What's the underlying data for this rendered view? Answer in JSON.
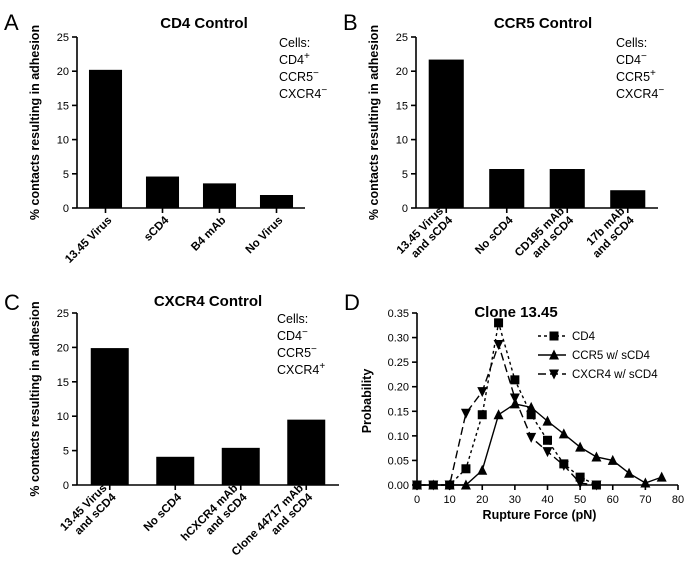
{
  "chart_data": [
    {
      "id": "A",
      "panel": "A",
      "type": "bar",
      "title": "CD4 Control",
      "ylabel": "% contacts resulting in adhesion",
      "ylim": [
        0,
        25
      ],
      "yticks": [
        "0",
        "5",
        "10",
        "15",
        "20",
        "25"
      ],
      "categories": [
        [
          "13.45 Virus"
        ],
        [
          "sCD4"
        ],
        [
          "B4 mAb"
        ],
        [
          "No Virus"
        ]
      ],
      "values": [
        20.2,
        4.6,
        3.6,
        1.9
      ],
      "note": [
        {
          "base": "Cells:",
          "sup": ""
        },
        {
          "base": "CD4",
          "sup": "+"
        },
        {
          "base": "CCR5",
          "sup": "−"
        },
        {
          "base": "CXCR4",
          "sup": "−"
        }
      ],
      "bar_color": "#000000"
    },
    {
      "id": "B",
      "panel": "B",
      "type": "bar",
      "title": "CCR5 Control",
      "ylabel": "% contacts resulting in adhesion",
      "ylim": [
        0,
        25
      ],
      "yticks": [
        "0",
        "5",
        "10",
        "15",
        "20",
        "25"
      ],
      "categories": [
        [
          "13.45 Virus",
          "and sCD4"
        ],
        [
          "No sCD4"
        ],
        [
          "CD195 mAb",
          "and sCD4"
        ],
        [
          "17b mAb",
          "and sCD4"
        ]
      ],
      "values": [
        21.7,
        5.7,
        5.7,
        2.6
      ],
      "note": [
        {
          "base": "Cells:",
          "sup": ""
        },
        {
          "base": "CD4",
          "sup": "−"
        },
        {
          "base": "CCR5",
          "sup": "+"
        },
        {
          "base": "CXCR4",
          "sup": "−"
        }
      ],
      "bar_color": "#000000"
    },
    {
      "id": "C",
      "panel": "C",
      "type": "bar",
      "title": "CXCR4 Control",
      "ylabel": "% contacts resulting in adhesion",
      "ylim": [
        0,
        25
      ],
      "yticks": [
        "0",
        "5",
        "10",
        "15",
        "20",
        "25"
      ],
      "categories": [
        [
          "13.45 Virus",
          "and sCD4"
        ],
        [
          "No sCD4"
        ],
        [
          "hCXCR4 mAb",
          "and sCD4"
        ],
        [
          "Clone 44717 mAb",
          "and sCD4"
        ]
      ],
      "values": [
        19.9,
        4.1,
        5.4,
        9.5
      ],
      "note": [
        {
          "base": "Cells:",
          "sup": ""
        },
        {
          "base": "CD4",
          "sup": "−"
        },
        {
          "base": "CCR5",
          "sup": "−"
        },
        {
          "base": "CXCR4",
          "sup": "+"
        }
      ],
      "bar_color": "#000000"
    },
    {
      "id": "D",
      "panel": "D",
      "type": "line",
      "title": "Clone 13.45",
      "xlabel": "Rupture Force (pN)",
      "ylabel": "Probability",
      "xlim": [
        0,
        80
      ],
      "ylim": [
        0,
        0.35
      ],
      "xticks": [
        "0",
        "10",
        "20",
        "30",
        "40",
        "50",
        "60",
        "70",
        "80"
      ],
      "yticks": [
        "0.00",
        "0.05",
        "0.10",
        "0.15",
        "0.20",
        "0.25",
        "0.30",
        "0.35"
      ],
      "legend_position": "top-right",
      "series": [
        {
          "name": "CD4",
          "marker": "square",
          "dash": "3,3",
          "x": [
            0,
            5,
            10,
            15,
            20,
            25,
            30,
            35,
            40,
            45,
            50,
            55
          ],
          "y": [
            0.0,
            0.0,
            0.0,
            0.033,
            0.143,
            0.33,
            0.214,
            0.143,
            0.091,
            0.043,
            0.016,
            0.0
          ]
        },
        {
          "name": "CCR5 w/ sCD4",
          "marker": "triangle-up",
          "dash": "",
          "x": [
            0,
            5,
            10,
            15,
            20,
            25,
            30,
            35,
            40,
            45,
            50,
            55,
            60,
            65,
            70,
            75
          ],
          "y": [
            0.0,
            0.0,
            0.0,
            0.0,
            0.03,
            0.143,
            0.165,
            0.158,
            0.13,
            0.104,
            0.077,
            0.057,
            0.05,
            0.024,
            0.004,
            0.016
          ]
        },
        {
          "name": "CXCR4 w/ sCD4",
          "marker": "triangle-down",
          "dash": "8,4",
          "x": [
            0,
            5,
            10,
            15,
            20,
            25,
            30,
            35,
            40,
            45,
            50,
            55
          ],
          "y": [
            0.0,
            0.0,
            0.0,
            0.146,
            0.19,
            0.286,
            0.177,
            0.097,
            0.068,
            0.04,
            0.004,
            0.0
          ]
        }
      ]
    }
  ]
}
